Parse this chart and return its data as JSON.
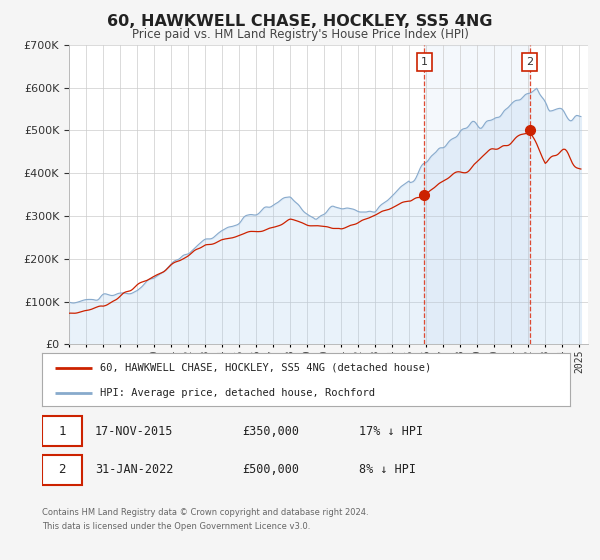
{
  "title": "60, HAWKWELL CHASE, HOCKLEY, SS5 4NG",
  "subtitle": "Price paid vs. HM Land Registry's House Price Index (HPI)",
  "legend_label_red": "60, HAWKWELL CHASE, HOCKLEY, SS5 4NG (detached house)",
  "legend_label_blue": "HPI: Average price, detached house, Rochford",
  "annotation1_date": "17-NOV-2015",
  "annotation1_price": "£350,000",
  "annotation1_hpi": "17% ↓ HPI",
  "annotation2_date": "31-JAN-2022",
  "annotation2_price": "£500,000",
  "annotation2_hpi": "8% ↓ HPI",
  "footer1": "Contains HM Land Registry data © Crown copyright and database right 2024.",
  "footer2": "This data is licensed under the Open Government Licence v3.0.",
  "sale1_year": 2015.88,
  "sale2_year": 2022.08,
  "sale1_value": 350000,
  "sale2_value": 500000,
  "ylim_max": 700000,
  "bg_color": "#f5f5f5",
  "plot_bg": "#ffffff",
  "red_color": "#cc2200",
  "blue_color": "#88aacc",
  "blue_fill": "#ddeeff",
  "grid_color": "#cccccc",
  "xmin": 1995,
  "xmax": 2025.5
}
